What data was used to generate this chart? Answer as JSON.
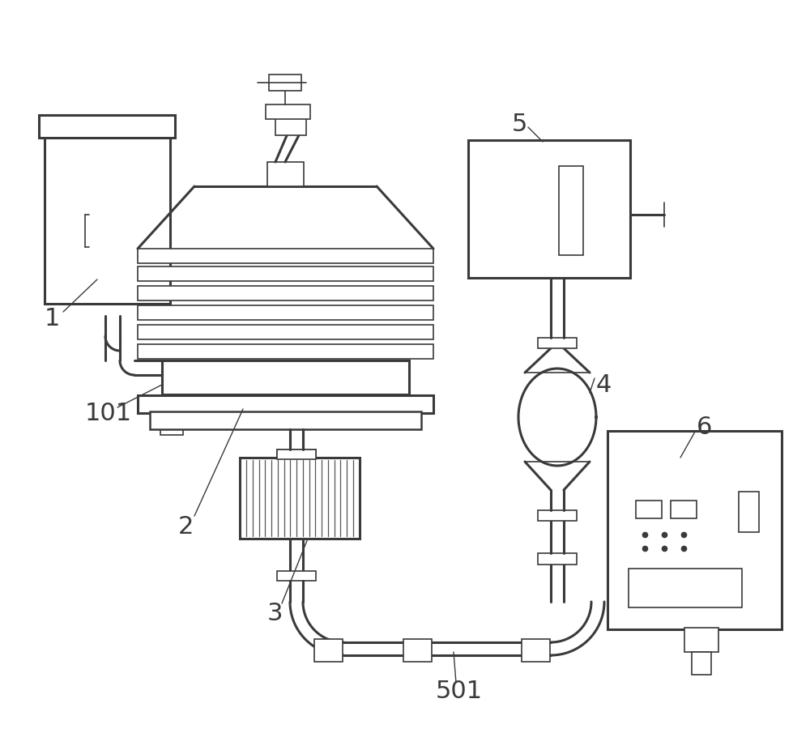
{
  "bg": "#ffffff",
  "lc": "#3a3a3a",
  "lw": 1.8,
  "lw2": 2.2,
  "lw3": 1.2,
  "fs_large": 22,
  "fs_label": 20,
  "label_color": "#3a3a3a"
}
